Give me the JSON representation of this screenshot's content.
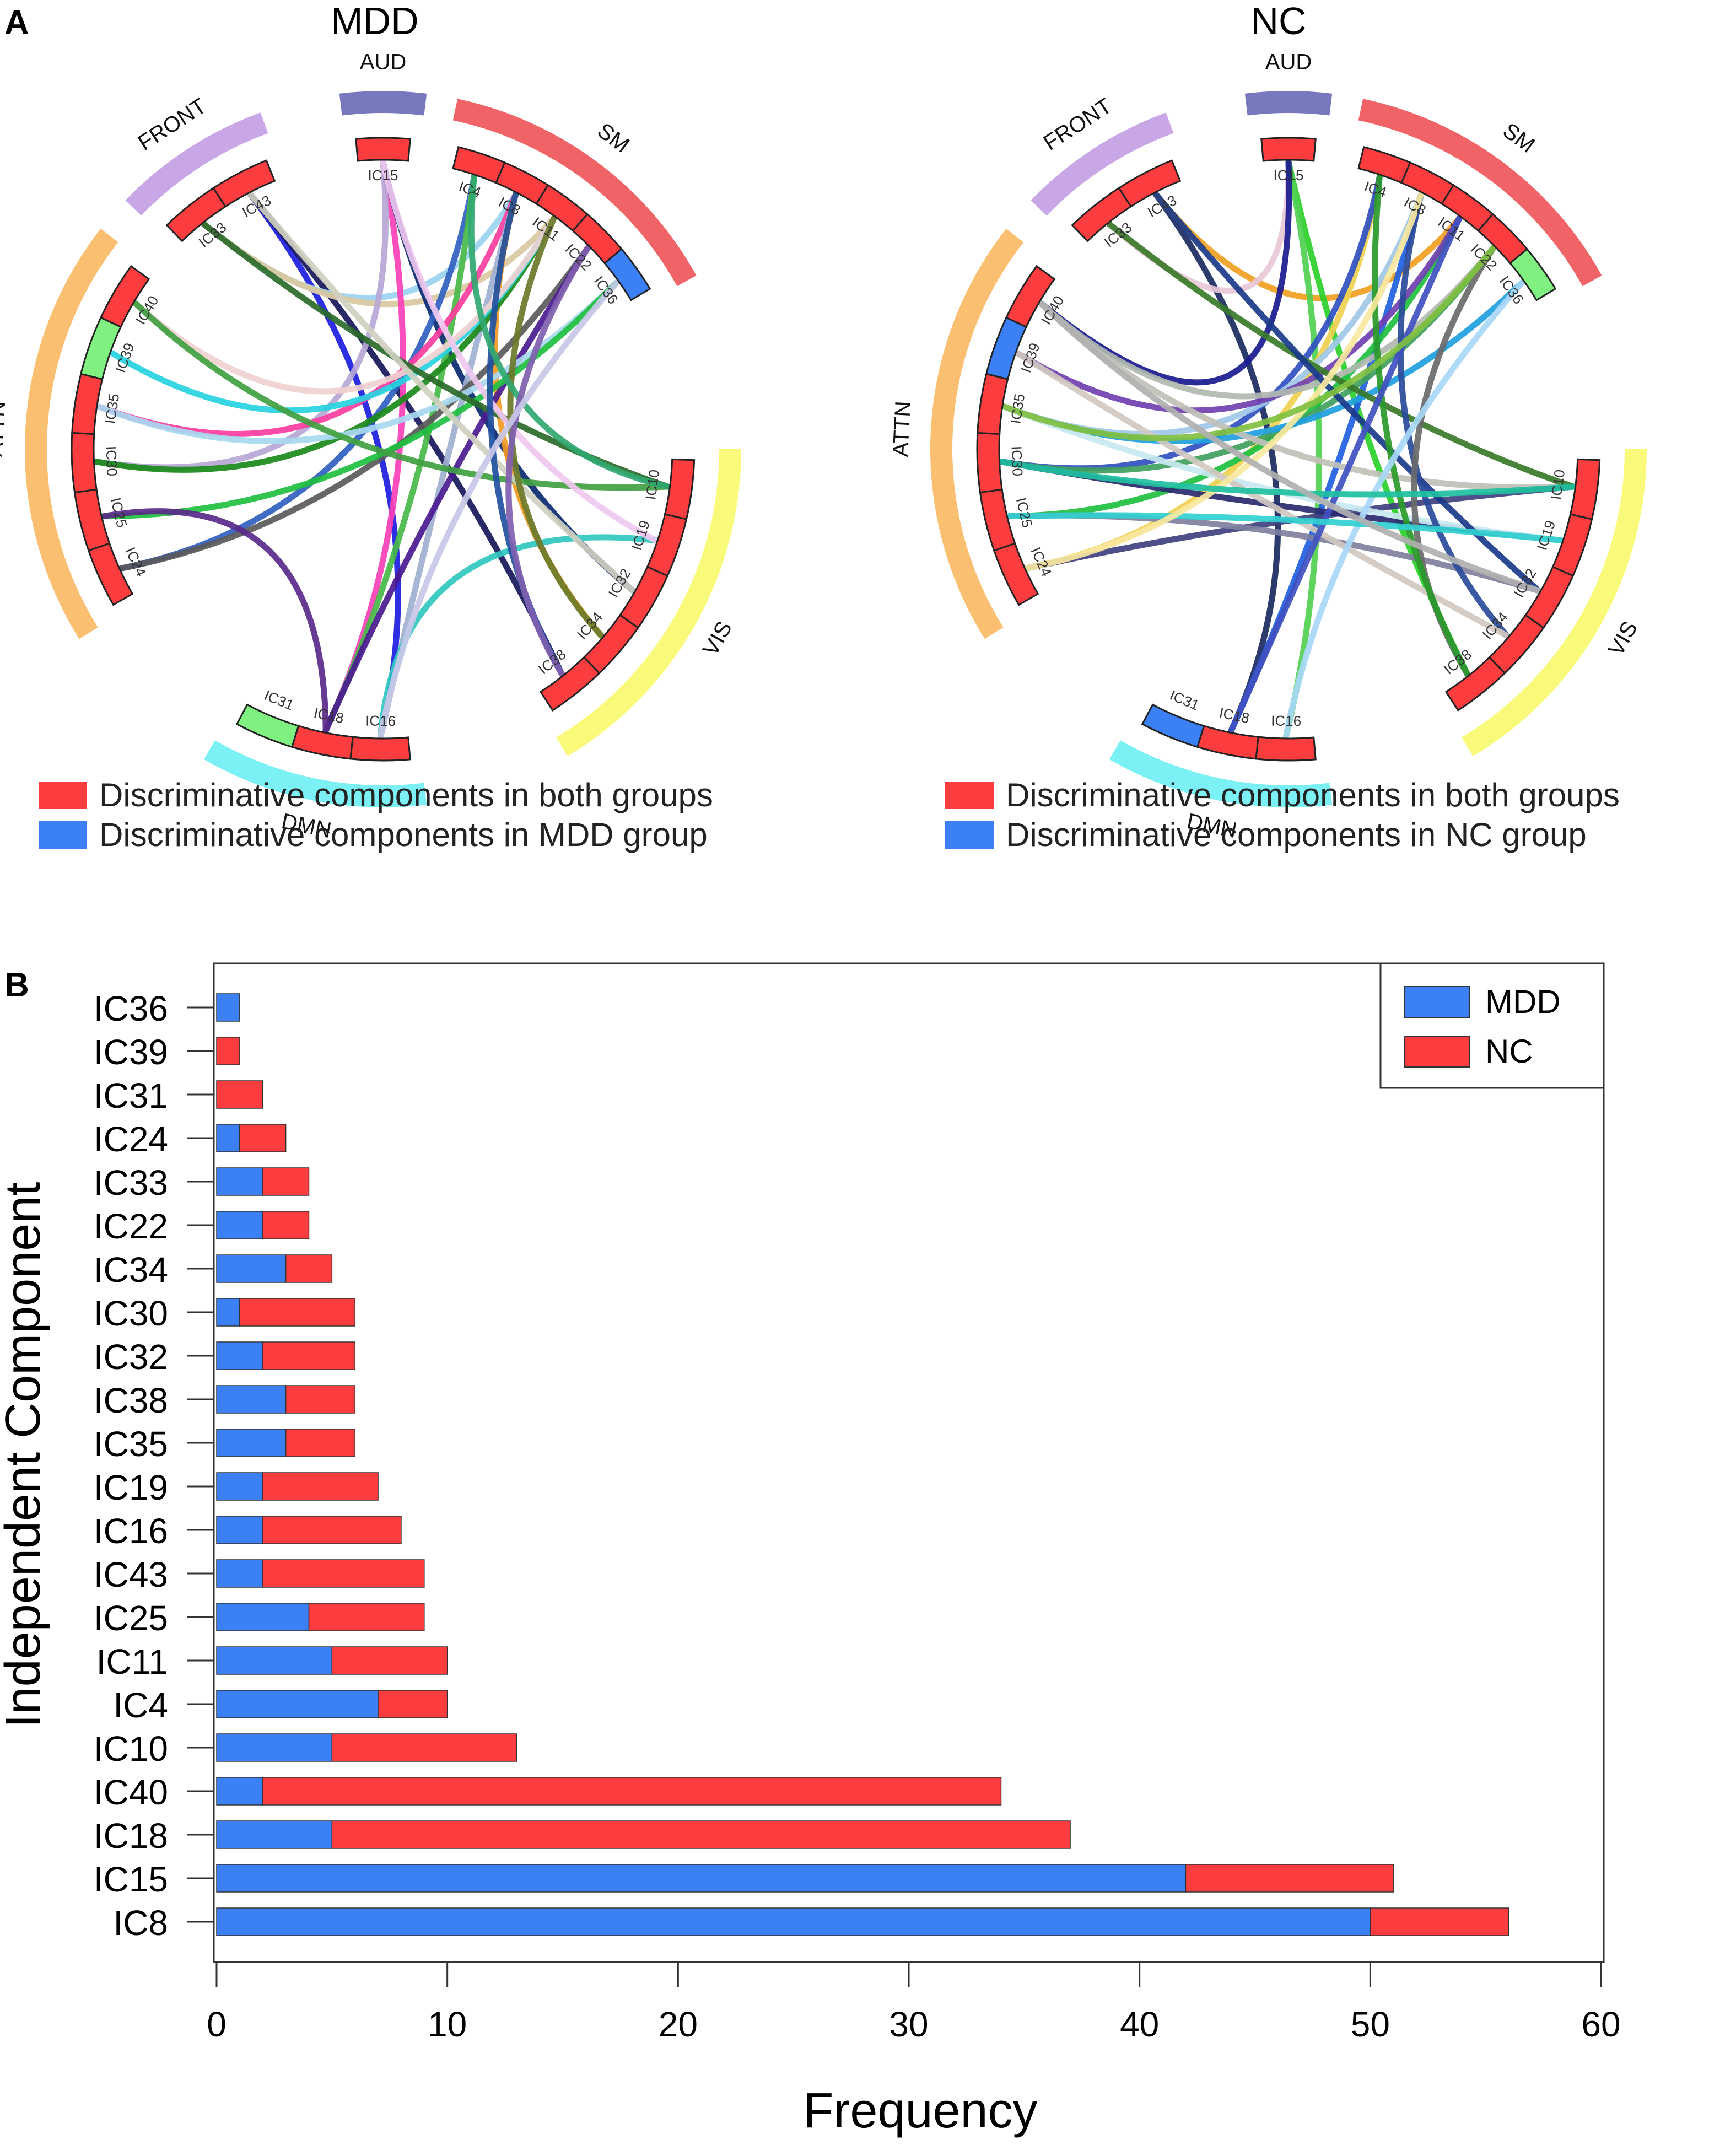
{
  "panels": {
    "a_label": "A",
    "b_label": "B"
  },
  "colors": {
    "both": "#fc3d3f",
    "mdd": "#3b80f4",
    "green_marker": "#80f180",
    "net_front": "#c9a7e6",
    "net_aud": "#7778bd",
    "net_sm": "#f06468",
    "net_vis": "#fafa7a",
    "net_dmn": "#7cf1f5",
    "net_attn": "#fbbf72"
  },
  "circos": [
    {
      "title": "MDD",
      "legend": [
        {
          "color": "#fc3d3f",
          "text": "Discriminative components in both groups"
        },
        {
          "color": "#3b80f4",
          "text": "Discriminative components in MDD group"
        }
      ],
      "networks": [
        "FRONT",
        "AUD",
        "SM",
        "VIS",
        "DMN",
        "ATTN"
      ],
      "components": [
        {
          "name": "IC33",
          "net": "FRONT",
          "status": "both"
        },
        {
          "name": "IC43",
          "net": "FRONT",
          "status": "both"
        },
        {
          "name": "IC15",
          "net": "AUD",
          "status": "both"
        },
        {
          "name": "IC4",
          "net": "SM",
          "status": "both"
        },
        {
          "name": "IC8",
          "net": "SM",
          "status": "both"
        },
        {
          "name": "IC11",
          "net": "SM",
          "status": "both"
        },
        {
          "name": "IC22",
          "net": "SM",
          "status": "both"
        },
        {
          "name": "IC36",
          "net": "SM",
          "status": "group"
        },
        {
          "name": "IC10",
          "net": "VIS",
          "status": "both"
        },
        {
          "name": "IC19",
          "net": "VIS",
          "status": "both"
        },
        {
          "name": "IC32",
          "net": "VIS",
          "status": "both"
        },
        {
          "name": "IC34",
          "net": "VIS",
          "status": "both"
        },
        {
          "name": "IC38",
          "net": "VIS",
          "status": "both"
        },
        {
          "name": "IC16",
          "net": "DMN",
          "status": "both"
        },
        {
          "name": "IC18",
          "net": "DMN",
          "status": "both"
        },
        {
          "name": "IC31",
          "net": "DMN",
          "status": "other"
        },
        {
          "name": "IC24",
          "net": "ATTN",
          "status": "both"
        },
        {
          "name": "IC25",
          "net": "ATTN",
          "status": "both"
        },
        {
          "name": "IC30",
          "net": "ATTN",
          "status": "both"
        },
        {
          "name": "IC35",
          "net": "ATTN",
          "status": "both"
        },
        {
          "name": "IC39",
          "net": "ATTN",
          "status": "other"
        },
        {
          "name": "IC40",
          "net": "ATTN",
          "status": "both"
        }
      ],
      "links": [
        [
          "IC43",
          "IC16",
          "#1c1ce0"
        ],
        [
          "IC43",
          "IC38",
          "#17175a"
        ],
        [
          "IC33",
          "IC8",
          "#9bd3f0"
        ],
        [
          "IC33",
          "IC11",
          "#d9c8a0"
        ],
        [
          "IC15",
          "IC18",
          "#fb40b8"
        ],
        [
          "IC15",
          "IC32",
          "#0a2a70"
        ],
        [
          "IC15",
          "IC30",
          "#b7a6d6"
        ],
        [
          "IC4",
          "IC24",
          "#3060c0"
        ],
        [
          "IC4",
          "IC18",
          "#48b848"
        ],
        [
          "IC8",
          "IC35",
          "#fb3da0"
        ],
        [
          "IC8",
          "IC16",
          "#a0b0d0"
        ],
        [
          "IC8",
          "IC34",
          "#f39a20"
        ],
        [
          "IC11",
          "IC30",
          "#1a8a1a"
        ],
        [
          "IC11",
          "IC39",
          "#26d2e0"
        ],
        [
          "IC11",
          "IC40",
          "#f0d0d0"
        ],
        [
          "IC22",
          "IC24",
          "#5a5a5a"
        ],
        [
          "IC22",
          "IC18",
          "#4a1a90"
        ],
        [
          "IC36",
          "IC35",
          "#a8d8f0"
        ],
        [
          "IC36",
          "IC25",
          "#20c040"
        ],
        [
          "IC10",
          "IC40",
          "#40a040"
        ],
        [
          "IC10",
          "IC33",
          "#2a6a2a"
        ],
        [
          "IC19",
          "IC16",
          "#30c8c0"
        ],
        [
          "IC19",
          "IC15",
          "#f0c8f0"
        ],
        [
          "IC32",
          "IC43",
          "#d0d0c0"
        ],
        [
          "IC34",
          "IC11",
          "#6a7a2a"
        ],
        [
          "IC38",
          "IC8",
          "#2050a0"
        ],
        [
          "IC10",
          "IC4",
          "#30a870"
        ],
        [
          "IC25",
          "IC18",
          "#5a2a8a"
        ],
        [
          "IC38",
          "IC22",
          "#8060b0"
        ],
        [
          "IC16",
          "IC36",
          "#c8c8e8"
        ]
      ]
    },
    {
      "title": "NC",
      "legend": [
        {
          "color": "#fc3d3f",
          "text": "Discriminative components in both groups"
        },
        {
          "color": "#3b80f4",
          "text": "Discriminative components in NC group"
        }
      ],
      "networks": [
        "FRONT",
        "AUD",
        "SM",
        "VIS",
        "DMN",
        "ATTN"
      ],
      "components": [
        {
          "name": "IC33",
          "net": "FRONT",
          "status": "both"
        },
        {
          "name": "IC43",
          "net": "FRONT",
          "status": "both"
        },
        {
          "name": "IC15",
          "net": "AUD",
          "status": "both"
        },
        {
          "name": "IC4",
          "net": "SM",
          "status": "both"
        },
        {
          "name": "IC8",
          "net": "SM",
          "status": "both"
        },
        {
          "name": "IC11",
          "net": "SM",
          "status": "both"
        },
        {
          "name": "IC22",
          "net": "SM",
          "status": "both"
        },
        {
          "name": "IC36",
          "net": "SM",
          "status": "other"
        },
        {
          "name": "IC10",
          "net": "VIS",
          "status": "both"
        },
        {
          "name": "IC19",
          "net": "VIS",
          "status": "both"
        },
        {
          "name": "IC32",
          "net": "VIS",
          "status": "both"
        },
        {
          "name": "IC34",
          "net": "VIS",
          "status": "both"
        },
        {
          "name": "IC38",
          "net": "VIS",
          "status": "both"
        },
        {
          "name": "IC16",
          "net": "DMN",
          "status": "both"
        },
        {
          "name": "IC18",
          "net": "DMN",
          "status": "both"
        },
        {
          "name": "IC31",
          "net": "DMN",
          "status": "group"
        },
        {
          "name": "IC24",
          "net": "ATTN",
          "status": "both"
        },
        {
          "name": "IC25",
          "net": "ATTN",
          "status": "both"
        },
        {
          "name": "IC30",
          "net": "ATTN",
          "status": "both"
        },
        {
          "name": "IC35",
          "net": "ATTN",
          "status": "both"
        },
        {
          "name": "IC39",
          "net": "ATTN",
          "status": "group"
        },
        {
          "name": "IC40",
          "net": "ATTN",
          "status": "both"
        }
      ],
      "links": [
        [
          "IC43",
          "IC18",
          "#1a2a60"
        ],
        [
          "IC43",
          "IC11",
          "#f0a020"
        ],
        [
          "IC33",
          "IC15",
          "#e8c8d8"
        ],
        [
          "IC15",
          "IC38",
          "#2ad02a"
        ],
        [
          "IC15",
          "IC16",
          "#50d050"
        ],
        [
          "IC15",
          "IC40",
          "#1a1a90"
        ],
        [
          "IC4",
          "IC24",
          "#f0d050"
        ],
        [
          "IC4",
          "IC30",
          "#3050c0"
        ],
        [
          "IC8",
          "IC35",
          "#a0c8e8"
        ],
        [
          "IC8",
          "IC18",
          "#2060e0"
        ],
        [
          "IC11",
          "IC25",
          "#20c040"
        ],
        [
          "IC11",
          "IC39",
          "#7040b0"
        ],
        [
          "IC22",
          "IC40",
          "#b0b8b0"
        ],
        [
          "IC22",
          "IC30",
          "#40a060"
        ],
        [
          "IC36",
          "IC35",
          "#20a0e0"
        ],
        [
          "IC10",
          "IC40",
          "#c0c0b8"
        ],
        [
          "IC10",
          "IC24",
          "#404080"
        ],
        [
          "IC10",
          "IC33",
          "#3a7a2a"
        ],
        [
          "IC19",
          "IC30",
          "#2a2a70"
        ],
        [
          "IC19",
          "IC35",
          "#c8e8f0"
        ],
        [
          "IC32",
          "IC43",
          "#1a3a8a"
        ],
        [
          "IC32",
          "IC25",
          "#8080a0"
        ],
        [
          "IC34",
          "IC8",
          "#2a4a9a"
        ],
        [
          "IC34",
          "IC39",
          "#d0c8c0"
        ],
        [
          "IC38",
          "IC22",
          "#6a6a6a"
        ],
        [
          "IC38",
          "IC4",
          "#2a9a2a"
        ],
        [
          "IC16",
          "IC36",
          "#a8d8f8"
        ],
        [
          "IC18",
          "IC11",
          "#4050c0"
        ],
        [
          "IC25",
          "IC19",
          "#30d0d0"
        ],
        [
          "IC24",
          "IC8",
          "#f8e8a0"
        ],
        [
          "IC30",
          "IC10",
          "#20c0a0"
        ],
        [
          "IC35",
          "IC22",
          "#80c040"
        ],
        [
          "IC40",
          "IC32",
          "#b0b0b0"
        ]
      ]
    }
  ],
  "chart_data": {
    "type": "bar",
    "stacked": true,
    "orientation": "horizontal",
    "categories": [
      "IC36",
      "IC39",
      "IC31",
      "IC24",
      "IC33",
      "IC22",
      "IC34",
      "IC30",
      "IC32",
      "IC38",
      "IC35",
      "IC19",
      "IC16",
      "IC43",
      "IC25",
      "IC11",
      "IC4",
      "IC10",
      "IC40",
      "IC18",
      "IC15",
      "IC8"
    ],
    "series": [
      {
        "name": "MDD",
        "color": "#3b80f4",
        "values": [
          1,
          0,
          0,
          1,
          2,
          2,
          3,
          1,
          2,
          3,
          3,
          2,
          2,
          2,
          4,
          5,
          7,
          5,
          2,
          5,
          42,
          50
        ]
      },
      {
        "name": "NC",
        "color": "#fc3d3f",
        "values": [
          0,
          1,
          2,
          2,
          2,
          2,
          2,
          5,
          4,
          3,
          3,
          5,
          6,
          7,
          5,
          5,
          3,
          8,
          32,
          32,
          9,
          6
        ]
      }
    ],
    "title": "",
    "xlabel": "Frequency",
    "ylabel": "Independent Component",
    "xlim": [
      0,
      60
    ],
    "xticks": [
      0,
      10,
      20,
      30,
      40,
      50,
      60
    ],
    "legend_position": "top-right",
    "grid": false
  }
}
